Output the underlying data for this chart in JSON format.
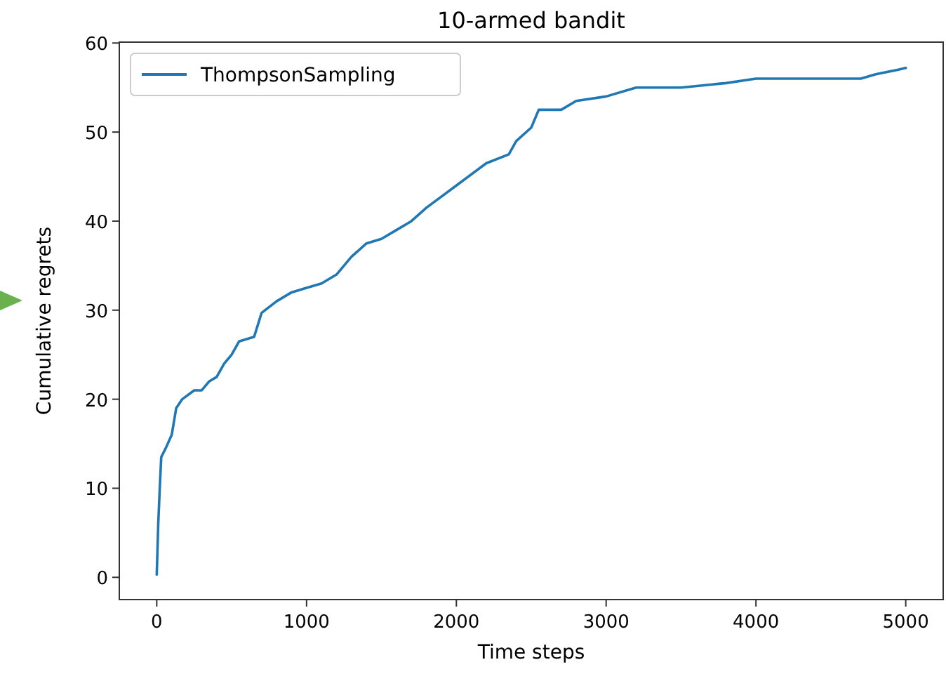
{
  "chart_data": {
    "type": "line",
    "title": "10-armed bandit",
    "xlabel": "Time steps",
    "ylabel": "Cumulative regrets",
    "series": [
      {
        "name": "ThompsonSampling",
        "color": "#1f77b4",
        "x": [
          0,
          10,
          20,
          30,
          60,
          100,
          130,
          170,
          250,
          300,
          350,
          400,
          450,
          500,
          550,
          650,
          700,
          800,
          900,
          1000,
          1100,
          1200,
          1300,
          1400,
          1500,
          1600,
          1700,
          1800,
          2000,
          2200,
          2350,
          2400,
          2500,
          2550,
          2700,
          2800,
          3000,
          3200,
          3500,
          3800,
          4000,
          4700,
          4800,
          4950,
          5000
        ],
        "values": [
          0.3,
          6,
          10,
          13.5,
          14.5,
          16,
          19,
          20,
          21,
          21,
          22,
          22.5,
          24,
          25,
          26.5,
          27,
          29.7,
          31,
          32,
          32.5,
          33,
          34,
          36,
          37.5,
          38,
          39,
          40,
          41.5,
          44,
          46.5,
          47.5,
          49,
          50.5,
          52.5,
          52.5,
          53.5,
          54,
          55,
          55,
          55.5,
          56,
          56,
          56.5,
          57,
          57.2
        ]
      }
    ],
    "xlim": [
      -250,
      5250
    ],
    "ylim": [
      -2.5,
      60.1
    ],
    "xticks": [
      0,
      1000,
      2000,
      3000,
      4000,
      5000
    ],
    "yticks": [
      0,
      10,
      20,
      30,
      40,
      50,
      60
    ],
    "legend": "top left",
    "line_style": "solid",
    "grid": false
  }
}
